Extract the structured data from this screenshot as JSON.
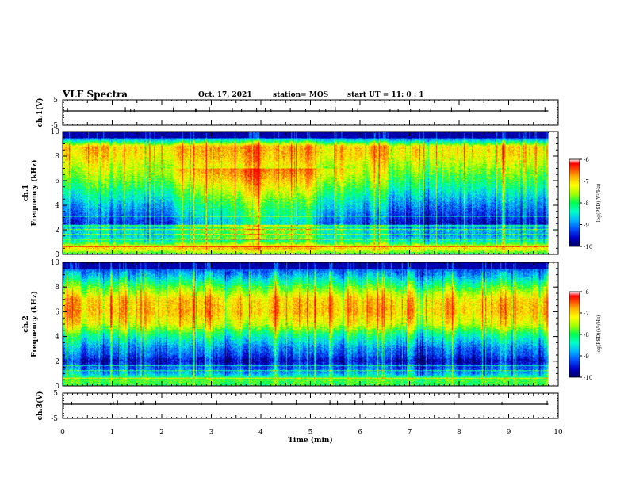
{
  "header": {
    "title": "VLF Spectra",
    "date": "Oct. 17, 2021",
    "station": "station= MOS",
    "start_ut": "start UT = 11: 0 : 1"
  },
  "colormap": [
    "#000060",
    "#0000c8",
    "#0050ff",
    "#00b4ff",
    "#00ffc8",
    "#00ff50",
    "#a0ff00",
    "#ffff00",
    "#ffb400",
    "#ff5000",
    "#ff0000",
    "#ffffff"
  ],
  "chart_data": [
    {
      "type": "line",
      "panel": "ch.1",
      "ylabel": "ch.1(V)",
      "ylim": [
        -5,
        5
      ],
      "yticks": [
        "5",
        "-5"
      ],
      "x": [
        0,
        9.8
      ],
      "y": [
        0,
        0
      ],
      "description_of_trace": "flat line near 0 V"
    },
    {
      "type": "heatmap",
      "panel": "ch.1",
      "ylabel_line1": "ch.1",
      "ylabel_line2": "Frequency (kHz)",
      "ylim": [
        0,
        10
      ],
      "yticks": [
        "0",
        "2",
        "4",
        "6",
        "8",
        "10"
      ],
      "xlim": [
        0,
        10
      ],
      "data_xmax": 9.8,
      "colorbar": {
        "label": "log(PSD)(V²/Hz)",
        "range": [
          -10,
          -6
        ],
        "ticks": [
          "-6",
          "-7",
          "-8",
          "-9",
          "-10"
        ]
      },
      "freq_profile": [
        {
          "f": 0.0,
          "v": -8.0
        },
        {
          "f": 0.5,
          "v": -7.0
        },
        {
          "f": 1.0,
          "v": -8.2
        },
        {
          "f": 1.5,
          "v": -8.8
        },
        {
          "f": 2.0,
          "v": -8.6
        },
        {
          "f": 2.5,
          "v": -9.5
        },
        {
          "f": 3.0,
          "v": -9.3
        },
        {
          "f": 4.0,
          "v": -8.9
        },
        {
          "f": 5.0,
          "v": -8.4
        },
        {
          "f": 6.0,
          "v": -7.9
        },
        {
          "f": 7.0,
          "v": -7.5
        },
        {
          "f": 8.0,
          "v": -7.1
        },
        {
          "f": 8.8,
          "v": -7.0
        },
        {
          "f": 9.2,
          "v": -8.2
        },
        {
          "f": 9.5,
          "v": -9.3
        },
        {
          "f": 10.0,
          "v": -9.8
        }
      ],
      "time_enhancement": [
        {
          "t": 0,
          "v": 0.0
        },
        {
          "t": 2,
          "v": 0.3
        },
        {
          "t": 3,
          "v": 0.8
        },
        {
          "t": 4,
          "v": 1.1
        },
        {
          "t": 5,
          "v": 0.8
        },
        {
          "t": 6,
          "v": 0.2
        },
        {
          "t": 7,
          "v": 0.0
        },
        {
          "t": 9.8,
          "v": 0.0
        }
      ],
      "emission_lines_khz": [
        0.6,
        1.2,
        1.6,
        2.0,
        2.3,
        3.1
      ]
    },
    {
      "type": "heatmap",
      "panel": "ch.2",
      "ylabel_line1": "ch.2",
      "ylabel_line2": "Frequency (kHz)",
      "ylim": [
        0,
        10
      ],
      "yticks": [
        "0",
        "2",
        "4",
        "6",
        "8",
        "10"
      ],
      "xlim": [
        0,
        10
      ],
      "data_xmax": 9.8,
      "colorbar": {
        "label": "log(PSD)(V²/Hz)",
        "range": [
          -10,
          -6
        ],
        "ticks": [
          "-6",
          "-7",
          "-8",
          "-9",
          "-10"
        ]
      },
      "freq_profile": [
        {
          "f": 0.0,
          "v": -8.0
        },
        {
          "f": 0.5,
          "v": -7.8
        },
        {
          "f": 1.0,
          "v": -8.8
        },
        {
          "f": 1.5,
          "v": -9.2
        },
        {
          "f": 2.0,
          "v": -9.6
        },
        {
          "f": 2.5,
          "v": -9.2
        },
        {
          "f": 3.0,
          "v": -9.0
        },
        {
          "f": 4.0,
          "v": -8.3
        },
        {
          "f": 5.0,
          "v": -7.3
        },
        {
          "f": 6.0,
          "v": -6.9
        },
        {
          "f": 7.0,
          "v": -7.0
        },
        {
          "f": 8.0,
          "v": -7.8
        },
        {
          "f": 9.0,
          "v": -8.8
        },
        {
          "f": 9.5,
          "v": -9.2
        },
        {
          "f": 10.0,
          "v": -9.6
        }
      ],
      "time_enhancement": [
        {
          "t": 0,
          "v": 0.0
        },
        {
          "t": 9.8,
          "v": 0.0
        }
      ],
      "emission_lines_khz": [
        0.6,
        1.2,
        1.6
      ]
    },
    {
      "type": "line",
      "panel": "ch.3",
      "ylabel": "ch.3(V)",
      "ylim": [
        -5,
        5
      ],
      "yticks": [
        "5",
        "-5"
      ],
      "x": [
        0,
        9.8
      ],
      "y": [
        0,
        0
      ],
      "description_of_trace": "flat line near 0 V"
    }
  ],
  "xaxis": {
    "label": "Time (min)",
    "ticks": [
      "0",
      "1",
      "2",
      "3",
      "4",
      "5",
      "6",
      "7",
      "8",
      "9",
      "10"
    ],
    "xlim": [
      0,
      10
    ]
  }
}
